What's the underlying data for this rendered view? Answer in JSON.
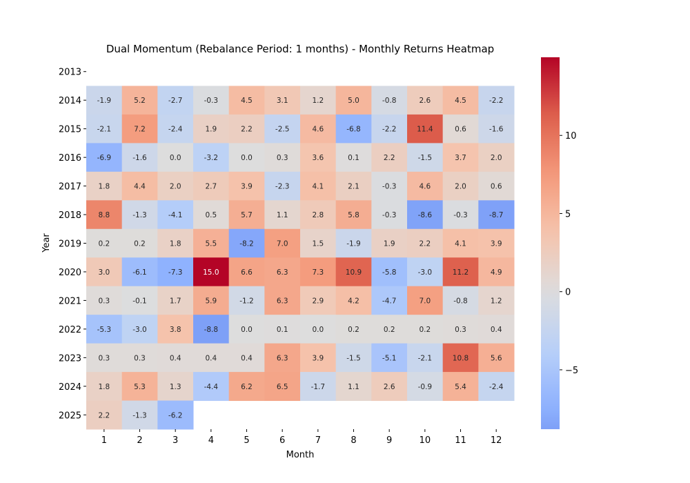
{
  "chart_data": {
    "type": "heatmap",
    "title": "Dual Momentum (Rebalance Period: 1 months) - Monthly Returns Heatmap",
    "xlabel": "Month",
    "ylabel": "Year",
    "x_categories": [
      "1",
      "2",
      "3",
      "4",
      "5",
      "6",
      "7",
      "8",
      "9",
      "10",
      "11",
      "12"
    ],
    "y_categories": [
      "2013",
      "2014",
      "2015",
      "2016",
      "2017",
      "2018",
      "2019",
      "2020",
      "2021",
      "2022",
      "2023",
      "2024",
      "2025"
    ],
    "values": [
      [
        null,
        null,
        null,
        null,
        null,
        null,
        null,
        null,
        null,
        null,
        null,
        null
      ],
      [
        -1.9,
        5.2,
        -2.7,
        -0.3,
        4.5,
        3.1,
        1.2,
        5.0,
        -0.8,
        2.6,
        4.5,
        -2.2
      ],
      [
        -2.1,
        7.2,
        -2.4,
        1.9,
        2.2,
        -2.5,
        4.6,
        -6.8,
        -2.2,
        11.4,
        0.6,
        -1.6
      ],
      [
        -6.9,
        -1.6,
        0.0,
        -3.2,
        0.0,
        0.3,
        3.6,
        0.1,
        2.2,
        -1.5,
        3.7,
        2.0
      ],
      [
        1.8,
        4.4,
        2.0,
        2.7,
        3.9,
        -2.3,
        4.1,
        2.1,
        -0.3,
        4.6,
        2.0,
        0.6
      ],
      [
        8.8,
        -1.3,
        -4.1,
        0.5,
        5.7,
        1.1,
        2.8,
        5.8,
        -0.3,
        -8.6,
        -0.3,
        -8.7
      ],
      [
        0.2,
        0.2,
        1.8,
        5.5,
        -8.2,
        7.0,
        1.5,
        -1.9,
        1.9,
        2.2,
        4.1,
        3.9
      ],
      [
        3.0,
        -6.1,
        -7.3,
        15.0,
        6.6,
        6.3,
        7.3,
        10.9,
        -5.8,
        -3.0,
        11.2,
        4.9
      ],
      [
        0.3,
        -0.1,
        1.7,
        5.9,
        -1.2,
        6.3,
        2.9,
        4.2,
        -4.7,
        7.0,
        -0.8,
        1.2
      ],
      [
        -5.3,
        -3.0,
        3.8,
        -8.8,
        0.0,
        0.1,
        0.0,
        0.2,
        0.2,
        0.2,
        0.3,
        0.4
      ],
      [
        0.3,
        0.3,
        0.4,
        0.4,
        0.4,
        6.3,
        3.9,
        -1.5,
        -5.1,
        -2.1,
        10.8,
        5.6
      ],
      [
        1.8,
        5.3,
        1.3,
        -4.4,
        6.2,
        6.5,
        -1.7,
        1.1,
        2.6,
        -0.9,
        5.4,
        -2.4
      ],
      [
        2.2,
        -1.3,
        -6.2,
        null,
        null,
        null,
        null,
        null,
        null,
        null,
        null,
        null
      ]
    ],
    "colormap": "coolwarm",
    "center": 0,
    "colorbar": {
      "range": [
        -8.8,
        15.0
      ],
      "ticks": [
        "−5",
        "0",
        "5",
        "10"
      ],
      "tick_values": [
        -5,
        0,
        5,
        10
      ]
    },
    "annotation_format": "0.1f"
  }
}
